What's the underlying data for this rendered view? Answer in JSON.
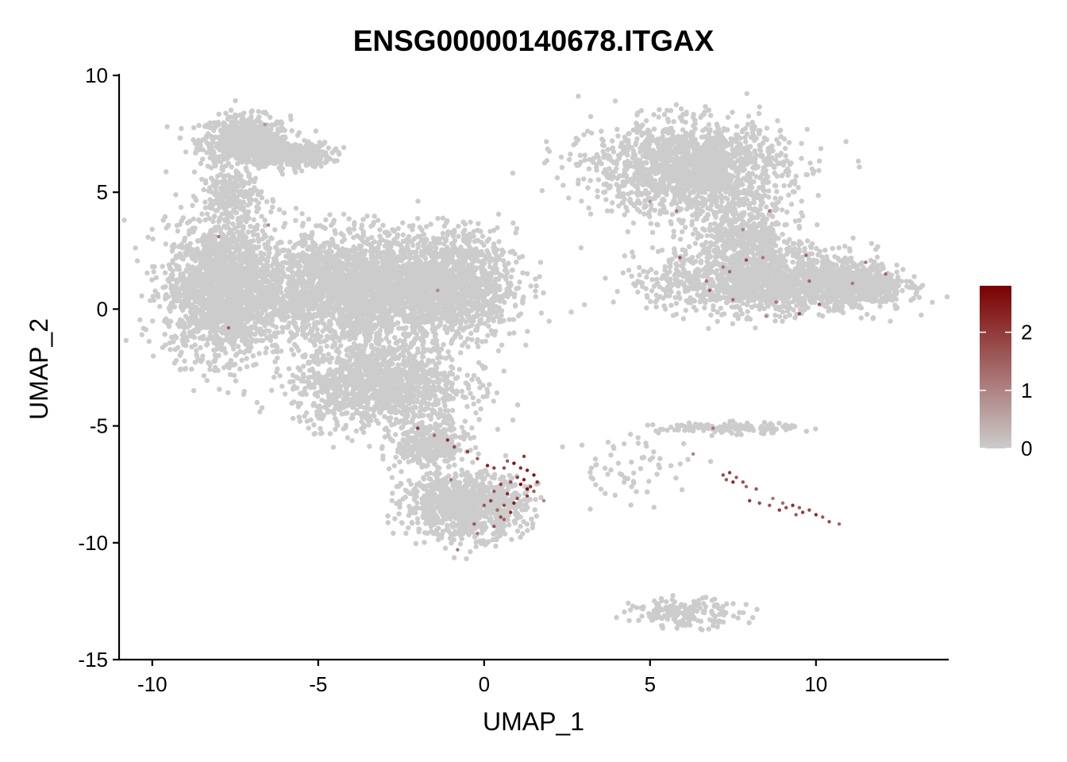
{
  "chart_data": {
    "type": "scatter",
    "title": "ENSG00000140678.ITGAX",
    "xlabel": "UMAP_1",
    "ylabel": "UMAP_2",
    "xlim": [
      -11.0,
      14.0
    ],
    "ylim": [
      -15.0,
      10.0
    ],
    "xticks": [
      -10,
      -5,
      0,
      5,
      10
    ],
    "yticks": [
      -15,
      -10,
      -5,
      0,
      5,
      10
    ],
    "xtick_labels": [
      "-10",
      "-5",
      "0",
      "5",
      "10"
    ],
    "ytick_labels": [
      "-15",
      "-10",
      "-5",
      "0",
      "5",
      "10"
    ],
    "grid": false,
    "legend_position": "right",
    "color_scale": {
      "low_color": "#cccccc",
      "high_color": "#7a0000",
      "min": 0,
      "max": 2.8,
      "ticks": [
        0,
        1,
        2
      ],
      "tick_labels": [
        "0",
        "1",
        "2"
      ]
    },
    "background_color": "#cccccc",
    "clusters": [
      {
        "name": "top-left-arm",
        "cx": -7.2,
        "cy": 7.2,
        "sx": 0.9,
        "sy": 0.7,
        "n": 700
      },
      {
        "name": "top-left-curl",
        "cx": -5.8,
        "cy": 6.6,
        "sx": 0.8,
        "sy": 0.35,
        "n": 350
      },
      {
        "name": "left-neck",
        "cx": -7.6,
        "cy": 4.8,
        "sx": 0.6,
        "sy": 0.8,
        "n": 250
      },
      {
        "name": "left-body",
        "cx": -7.8,
        "cy": 0.8,
        "sx": 1.2,
        "sy": 1.9,
        "n": 1900
      },
      {
        "name": "center-body",
        "cx": -3.8,
        "cy": 0.9,
        "sx": 2.0,
        "sy": 1.5,
        "n": 2500
      },
      {
        "name": "center-right-body",
        "cx": -1.0,
        "cy": 1.0,
        "sx": 1.3,
        "sy": 1.5,
        "n": 1300
      },
      {
        "name": "lower-body",
        "cx": -3.2,
        "cy": -3.2,
        "sx": 1.7,
        "sy": 1.2,
        "n": 1300
      },
      {
        "name": "neck-down",
        "cx": -1.6,
        "cy": -5.8,
        "sx": 0.7,
        "sy": 0.7,
        "n": 380
      },
      {
        "name": "bottom-blob",
        "cx": -0.6,
        "cy": -8.4,
        "sx": 1.2,
        "sy": 0.9,
        "n": 1000
      },
      {
        "name": "right-top-blob",
        "cx": 6.2,
        "cy": 6.0,
        "sx": 1.9,
        "sy": 1.3,
        "n": 1700
      },
      {
        "name": "right-mid",
        "cx": 8.5,
        "cy": 1.2,
        "sx": 2.2,
        "sy": 0.9,
        "n": 1500
      },
      {
        "name": "right-tail",
        "cx": 11.3,
        "cy": 1.0,
        "sx": 0.9,
        "sy": 0.6,
        "n": 500
      },
      {
        "name": "right-connector",
        "cx": 7.8,
        "cy": 3.2,
        "sx": 1.0,
        "sy": 0.9,
        "n": 450
      },
      {
        "name": "streak",
        "cx": 7.3,
        "cy": -5.1,
        "sx": 1.4,
        "sy": 0.15,
        "n": 150
      },
      {
        "name": "bottom-arc",
        "cx": 6.1,
        "cy": -13.0,
        "sx": 1.1,
        "sy": 0.4,
        "n": 170
      },
      {
        "name": "scattered",
        "cx": 4.5,
        "cy": -6.8,
        "sx": 1.3,
        "sy": 1.0,
        "n": 60
      }
    ],
    "expressing_points": [
      {
        "x": -6.6,
        "y": 7.9,
        "value": 0.8
      },
      {
        "x": -8.0,
        "y": 3.1,
        "value": 1.2
      },
      {
        "x": -6.5,
        "y": 3.6,
        "value": 1.0
      },
      {
        "x": -7.7,
        "y": -0.8,
        "value": 1.5
      },
      {
        "x": -1.4,
        "y": 0.8,
        "value": 1.0
      },
      {
        "x": -2.0,
        "y": -5.1,
        "value": 2.0
      },
      {
        "x": -1.5,
        "y": -5.4,
        "value": 1.4
      },
      {
        "x": -1.1,
        "y": -5.6,
        "value": 2.2
      },
      {
        "x": -0.9,
        "y": -5.9,
        "value": 1.8
      },
      {
        "x": -0.5,
        "y": -6.1,
        "value": 2.0
      },
      {
        "x": -0.2,
        "y": -6.4,
        "value": 1.6
      },
      {
        "x": 0.1,
        "y": -6.7,
        "value": 2.4
      },
      {
        "x": 0.3,
        "y": -6.8,
        "value": 2.0
      },
      {
        "x": 0.6,
        "y": -6.8,
        "value": 1.8
      },
      {
        "x": 0.9,
        "y": -6.6,
        "value": 2.6
      },
      {
        "x": 1.1,
        "y": -6.8,
        "value": 2.2
      },
      {
        "x": 1.3,
        "y": -6.9,
        "value": 2.4
      },
      {
        "x": 1.5,
        "y": -7.1,
        "value": 2.6
      },
      {
        "x": 1.6,
        "y": -7.4,
        "value": 2.2
      },
      {
        "x": 1.4,
        "y": -7.6,
        "value": 2.0
      },
      {
        "x": 1.2,
        "y": -7.3,
        "value": 2.4
      },
      {
        "x": 1.0,
        "y": -7.2,
        "value": 2.0
      },
      {
        "x": 0.8,
        "y": -7.4,
        "value": 1.8
      },
      {
        "x": 0.5,
        "y": -7.5,
        "value": 2.0
      },
      {
        "x": 0.3,
        "y": -7.8,
        "value": 1.6
      },
      {
        "x": 0.7,
        "y": -7.9,
        "value": 2.2
      },
      {
        "x": 1.0,
        "y": -8.1,
        "value": 1.8
      },
      {
        "x": 1.3,
        "y": -8.0,
        "value": 2.0
      },
      {
        "x": 1.5,
        "y": -7.8,
        "value": 1.6
      },
      {
        "x": 0.9,
        "y": -8.3,
        "value": 2.4
      },
      {
        "x": 0.6,
        "y": -8.4,
        "value": 1.8
      },
      {
        "x": 0.4,
        "y": -8.6,
        "value": 1.4
      },
      {
        "x": 0.2,
        "y": -8.2,
        "value": 2.0
      },
      {
        "x": 0.0,
        "y": -8.4,
        "value": 1.6
      },
      {
        "x": 0.5,
        "y": -8.9,
        "value": 1.8
      },
      {
        "x": 0.8,
        "y": -8.7,
        "value": 2.2
      },
      {
        "x": 0.3,
        "y": -9.3,
        "value": 1.6
      },
      {
        "x": 0.6,
        "y": -9.0,
        "value": 1.4
      },
      {
        "x": -0.3,
        "y": -9.2,
        "value": 1.6
      },
      {
        "x": -0.2,
        "y": -9.6,
        "value": 1.2
      },
      {
        "x": 1.8,
        "y": -8.2,
        "value": 1.0
      },
      {
        "x": -0.8,
        "y": -10.3,
        "value": 1.2
      },
      {
        "x": -1.0,
        "y": -7.3,
        "value": 1.2
      },
      {
        "x": 1.2,
        "y": -6.3,
        "value": 2.0
      },
      {
        "x": 0.7,
        "y": -6.5,
        "value": 1.6
      },
      {
        "x": 1.3,
        "y": -7.7,
        "value": 2.6
      },
      {
        "x": 1.1,
        "y": -7.5,
        "value": 2.8
      },
      {
        "x": 5.0,
        "y": 4.6,
        "value": 0.8
      },
      {
        "x": 5.8,
        "y": 4.2,
        "value": 1.2
      },
      {
        "x": 8.6,
        "y": 4.2,
        "value": 1.2
      },
      {
        "x": 7.8,
        "y": 3.4,
        "value": 1.0
      },
      {
        "x": 5.9,
        "y": 2.2,
        "value": 1.6
      },
      {
        "x": 7.2,
        "y": 1.8,
        "value": 1.2
      },
      {
        "x": 7.4,
        "y": 1.6,
        "value": 1.4
      },
      {
        "x": 7.9,
        "y": 2.1,
        "value": 1.8
      },
      {
        "x": 8.4,
        "y": 2.2,
        "value": 1.2
      },
      {
        "x": 9.7,
        "y": 2.3,
        "value": 1.4
      },
      {
        "x": 11.5,
        "y": 2.0,
        "value": 1.2
      },
      {
        "x": 12.1,
        "y": 1.5,
        "value": 1.4
      },
      {
        "x": 6.7,
        "y": 1.2,
        "value": 1.2
      },
      {
        "x": 9.8,
        "y": 1.2,
        "value": 1.4
      },
      {
        "x": 11.1,
        "y": 1.1,
        "value": 1.2
      },
      {
        "x": 6.8,
        "y": 0.8,
        "value": 1.6
      },
      {
        "x": 7.5,
        "y": 0.4,
        "value": 1.4
      },
      {
        "x": 8.8,
        "y": 0.3,
        "value": 1.2
      },
      {
        "x": 10.1,
        "y": 0.2,
        "value": 1.6
      },
      {
        "x": 9.5,
        "y": -0.2,
        "value": 1.8
      },
      {
        "x": 8.5,
        "y": -0.3,
        "value": 1.0
      },
      {
        "x": 6.9,
        "y": -5.1,
        "value": 1.2
      },
      {
        "x": 6.3,
        "y": -6.2,
        "value": 1.0
      },
      {
        "x": 7.2,
        "y": -7.1,
        "value": 1.8
      },
      {
        "x": 7.4,
        "y": -7.0,
        "value": 2.0
      },
      {
        "x": 7.6,
        "y": -7.2,
        "value": 1.6
      },
      {
        "x": 7.8,
        "y": -7.4,
        "value": 1.8
      },
      {
        "x": 7.5,
        "y": -7.4,
        "value": 2.2
      },
      {
        "x": 7.9,
        "y": -7.6,
        "value": 1.4
      },
      {
        "x": 8.2,
        "y": -7.7,
        "value": 1.6
      },
      {
        "x": 8.0,
        "y": -8.2,
        "value": 2.0
      },
      {
        "x": 8.3,
        "y": -8.3,
        "value": 1.8
      },
      {
        "x": 8.6,
        "y": -8.4,
        "value": 1.6
      },
      {
        "x": 8.9,
        "y": -8.6,
        "value": 2.0
      },
      {
        "x": 9.1,
        "y": -8.5,
        "value": 1.8
      },
      {
        "x": 9.3,
        "y": -8.4,
        "value": 2.2
      },
      {
        "x": 9.5,
        "y": -8.5,
        "value": 1.6
      },
      {
        "x": 9.6,
        "y": -8.7,
        "value": 2.0
      },
      {
        "x": 9.8,
        "y": -8.6,
        "value": 1.8
      },
      {
        "x": 10.0,
        "y": -8.8,
        "value": 2.2
      },
      {
        "x": 10.2,
        "y": -8.9,
        "value": 1.6
      },
      {
        "x": 10.4,
        "y": -9.1,
        "value": 1.8
      },
      {
        "x": 10.7,
        "y": -9.2,
        "value": 1.4
      },
      {
        "x": 9.4,
        "y": -8.8,
        "value": 1.6
      },
      {
        "x": 9.0,
        "y": -8.3,
        "value": 1.4
      },
      {
        "x": 8.7,
        "y": -8.1,
        "value": 1.2
      },
      {
        "x": 7.3,
        "y": -7.3,
        "value": 1.6
      }
    ]
  }
}
